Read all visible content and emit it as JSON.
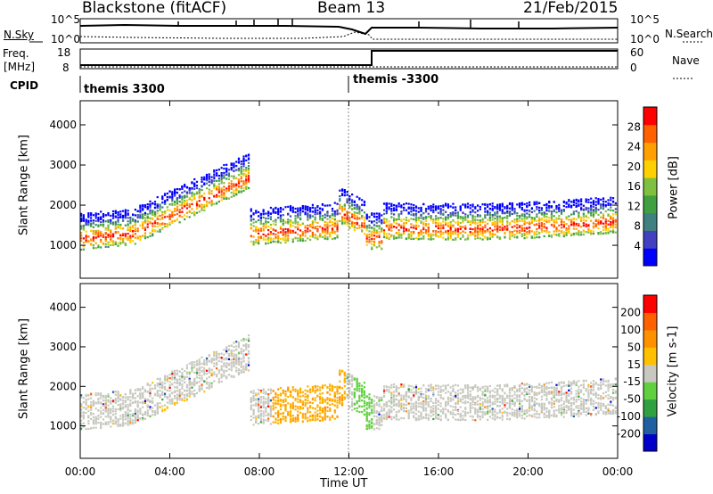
{
  "header": {
    "station": "Blackstone (fitACF)",
    "beam": "Beam 13",
    "date": "21/Feb/2015"
  },
  "top_panels": {
    "nsky_label": "N.Sky",
    "nsearch_label": "N.Search",
    "nave_label": "Nave",
    "freq_label_line1": "Freq.",
    "freq_label_line2": "[MHz]",
    "cpid_label": "CPID",
    "left_ticks": {
      "nsky_hi": "10^5",
      "nsky_lo": "10^0",
      "freq_hi": "18",
      "freq_lo": "8"
    },
    "right_ticks": {
      "nsearch_hi": "10^5",
      "nsearch_lo": "10^0",
      "nave_hi": "60",
      "nave_lo": "0"
    },
    "cpid_segments": [
      {
        "name": "themis 3300",
        "start_hour": 0
      },
      {
        "name": "themis -3300",
        "start_hour": 12
      }
    ]
  },
  "colors": {
    "power_scale": [
      "#0000ff",
      "#4040c0",
      "#408080",
      "#40a040",
      "#80c040",
      "#ffd000",
      "#ffa000",
      "#ff6000",
      "#ff0000"
    ],
    "velocity_scale": [
      "#0000c8",
      "#2060a0",
      "#30a040",
      "#60d040",
      "#c8c8c0",
      "#ffc000",
      "#ff9000",
      "#ff6000",
      "#ff0000"
    ]
  },
  "chart_data": [
    {
      "type": "heatmap",
      "panel": "power",
      "xlabel": "",
      "ylabel": "Slant Range [km]",
      "colorbar_label": "Power [dB]",
      "x_ticks": [
        "00:00",
        "04:00",
        "08:00",
        "12:00",
        "16:00",
        "20:00",
        "00:00"
      ],
      "y_ticks": [
        "1000",
        "2000",
        "3000",
        "4000"
      ],
      "colorbar_ticks": [
        "28",
        "24",
        "20",
        "16",
        "12",
        "8",
        "4"
      ],
      "xlim_hours": [
        0,
        24
      ],
      "ylim_km": [
        180,
        4600
      ],
      "features": [
        {
          "name": "main_band",
          "start_hour": 0,
          "end_hour": 3,
          "range_km": [
            1100,
            1400
          ]
        },
        {
          "name": "rising_band",
          "start_hour": 3,
          "end_hour": 7.5,
          "range_km": [
            1300,
            2800
          ]
        },
        {
          "name": "late_band",
          "start_hour": 13,
          "end_hour": 24,
          "range_km": [
            1300,
            2200
          ]
        }
      ]
    },
    {
      "type": "heatmap",
      "panel": "velocity",
      "xlabel": "Time UT",
      "ylabel": "Slant Range [km]",
      "colorbar_label": "Velocity [m s-1]",
      "x_ticks": [
        "00:00",
        "04:00",
        "08:00",
        "12:00",
        "16:00",
        "20:00",
        "00:00"
      ],
      "y_ticks": [
        "1000",
        "2000",
        "3000",
        "4000"
      ],
      "colorbar_ticks": [
        "200",
        "100",
        "50",
        "15",
        "-15",
        "-50",
        "-100",
        "-200"
      ],
      "xlim_hours": [
        0,
        24
      ],
      "ylim_km": [
        180,
        4600
      ]
    }
  ]
}
